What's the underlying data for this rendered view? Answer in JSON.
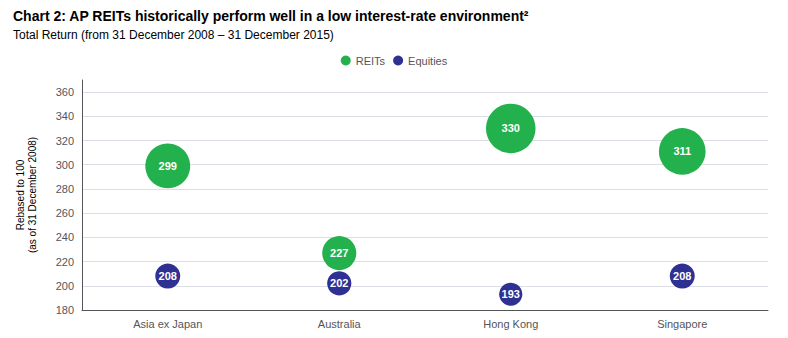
{
  "chart_data": {
    "type": "scatter",
    "title": "Chart 2: AP REITs historically perform well in a low interest-rate environment²",
    "subtitle": "Total Return (from 31 December 2008 – 31 December 2015)",
    "categories": [
      "Asia ex Japan",
      "Australia",
      "Hong Kong",
      "Singapore"
    ],
    "series": [
      {
        "name": "REITs",
        "color": "#22b14c",
        "values": [
          299,
          227,
          330,
          311
        ]
      },
      {
        "name": "Equities",
        "color": "#2e3192",
        "values": [
          208,
          202,
          193,
          208
        ]
      }
    ],
    "ylabel": "Rebased to 100\n(as of 31 December 2008)",
    "ylim": [
      180,
      370
    ],
    "yticks": [
      180,
      200,
      220,
      240,
      260,
      280,
      300,
      320,
      340,
      360
    ],
    "grid": true,
    "legend": "top",
    "data_labels": true
  }
}
